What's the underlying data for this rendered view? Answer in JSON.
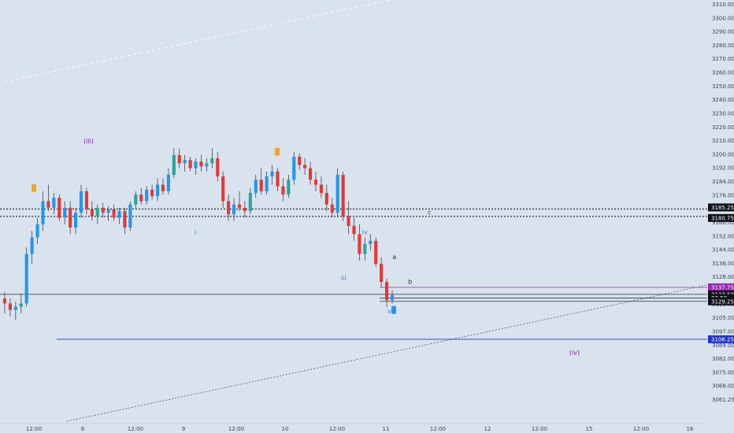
{
  "colors": {
    "background": "#d9e3ee",
    "up": "#2196f3",
    "down": "#e53935",
    "up_alt": "#26a69a",
    "wick": "#2b2f3a",
    "purple_level": "#9c27b0",
    "blue_level": "#2233cc",
    "wave_purple": "#7b1fa2",
    "wave_blue": "#1e88e5",
    "marker_orange": "#f5a623",
    "marker_blue": "#2196f3"
  },
  "chart_data": {
    "type": "candlestick",
    "ylim": [
      3058,
      3312
    ],
    "y_ticks": [
      "3310.00",
      "3300.00",
      "3290.00",
      "3280.00",
      "3270.00",
      "3260.00",
      "3250.00",
      "3240.00",
      "3230.00",
      "3220.00",
      "3210.00",
      "3200.00",
      "3192.00",
      "3184.00",
      "3176.00",
      "3168.00",
      "3160.00",
      "3152.00",
      "3144.00",
      "3136.00",
      "3128.00",
      "3121.00",
      "3113.00",
      "3105.00",
      "3097.00",
      "3089.00",
      "3082.00",
      "3075.00",
      "3068.00",
      "3061.25"
    ],
    "x_ticks": [
      "12:00",
      "8",
      "12:00",
      "9",
      "12:00",
      "10",
      "12:00",
      "11",
      "12:00",
      "12",
      "12:00",
      "15",
      "12:00",
      "16"
    ],
    "candles": [
      {
        "o": 3131,
        "h": 3135,
        "l": 3122,
        "c": 3128
      },
      {
        "o": 3128,
        "h": 3131,
        "l": 3120,
        "c": 3124
      },
      {
        "o": 3124,
        "h": 3129,
        "l": 3118,
        "c": 3126
      },
      {
        "o": 3126,
        "h": 3134,
        "l": 3122,
        "c": 3128
      },
      {
        "o": 3128,
        "h": 3162,
        "l": 3126,
        "c": 3158
      },
      {
        "o": 3158,
        "h": 3172,
        "l": 3152,
        "c": 3168
      },
      {
        "o": 3168,
        "h": 3180,
        "l": 3164,
        "c": 3176
      },
      {
        "o": 3176,
        "h": 3196,
        "l": 3172,
        "c": 3190
      },
      {
        "o": 3190,
        "h": 3200,
        "l": 3184,
        "c": 3186
      },
      {
        "o": 3186,
        "h": 3195,
        "l": 3182,
        "c": 3192
      },
      {
        "o": 3192,
        "h": 3194,
        "l": 3178,
        "c": 3180
      },
      {
        "o": 3180,
        "h": 3190,
        "l": 3176,
        "c": 3186
      },
      {
        "o": 3186,
        "h": 3190,
        "l": 3170,
        "c": 3174
      },
      {
        "o": 3174,
        "h": 3186,
        "l": 3170,
        "c": 3183
      },
      {
        "o": 3183,
        "h": 3200,
        "l": 3180,
        "c": 3196
      },
      {
        "o": 3196,
        "h": 3198,
        "l": 3182,
        "c": 3185
      },
      {
        "o": 3185,
        "h": 3190,
        "l": 3178,
        "c": 3181
      },
      {
        "o": 3181,
        "h": 3188,
        "l": 3176,
        "c": 3186
      },
      {
        "o": 3186,
        "h": 3189,
        "l": 3180,
        "c": 3183
      },
      {
        "o": 3183,
        "h": 3187,
        "l": 3178,
        "c": 3185
      },
      {
        "o": 3185,
        "h": 3188,
        "l": 3178,
        "c": 3180
      },
      {
        "o": 3180,
        "h": 3186,
        "l": 3176,
        "c": 3184
      },
      {
        "o": 3184,
        "h": 3186,
        "l": 3170,
        "c": 3174
      },
      {
        "o": 3174,
        "h": 3190,
        "l": 3172,
        "c": 3188
      },
      {
        "o": 3188,
        "h": 3196,
        "l": 3185,
        "c": 3194
      },
      {
        "o": 3194,
        "h": 3198,
        "l": 3188,
        "c": 3190
      },
      {
        "o": 3190,
        "h": 3199,
        "l": 3188,
        "c": 3197
      },
      {
        "o": 3197,
        "h": 3200,
        "l": 3191,
        "c": 3193
      },
      {
        "o": 3193,
        "h": 3204,
        "l": 3190,
        "c": 3200
      },
      {
        "o": 3200,
        "h": 3204,
        "l": 3194,
        "c": 3196
      },
      {
        "o": 3196,
        "h": 3210,
        "l": 3194,
        "c": 3206
      },
      {
        "o": 3206,
        "h": 3222,
        "l": 3204,
        "c": 3218
      },
      {
        "o": 3218,
        "h": 3222,
        "l": 3210,
        "c": 3213
      },
      {
        "o": 3213,
        "h": 3218,
        "l": 3208,
        "c": 3215
      },
      {
        "o": 3215,
        "h": 3217,
        "l": 3208,
        "c": 3210
      },
      {
        "o": 3210,
        "h": 3216,
        "l": 3206,
        "c": 3214
      },
      {
        "o": 3214,
        "h": 3218,
        "l": 3208,
        "c": 3211
      },
      {
        "o": 3211,
        "h": 3216,
        "l": 3208,
        "c": 3213
      },
      {
        "o": 3213,
        "h": 3222,
        "l": 3210,
        "c": 3216
      },
      {
        "o": 3216,
        "h": 3220,
        "l": 3202,
        "c": 3205
      },
      {
        "o": 3205,
        "h": 3208,
        "l": 3186,
        "c": 3190
      },
      {
        "o": 3190,
        "h": 3194,
        "l": 3178,
        "c": 3182
      },
      {
        "o": 3182,
        "h": 3192,
        "l": 3178,
        "c": 3188
      },
      {
        "o": 3188,
        "h": 3196,
        "l": 3184,
        "c": 3186
      },
      {
        "o": 3186,
        "h": 3190,
        "l": 3180,
        "c": 3184
      },
      {
        "o": 3184,
        "h": 3198,
        "l": 3182,
        "c": 3195
      },
      {
        "o": 3195,
        "h": 3206,
        "l": 3192,
        "c": 3203
      },
      {
        "o": 3203,
        "h": 3210,
        "l": 3194,
        "c": 3196
      },
      {
        "o": 3196,
        "h": 3208,
        "l": 3194,
        "c": 3205
      },
      {
        "o": 3205,
        "h": 3212,
        "l": 3200,
        "c": 3208
      },
      {
        "o": 3208,
        "h": 3210,
        "l": 3196,
        "c": 3199
      },
      {
        "o": 3199,
        "h": 3204,
        "l": 3190,
        "c": 3194
      },
      {
        "o": 3194,
        "h": 3206,
        "l": 3192,
        "c": 3203
      },
      {
        "o": 3203,
        "h": 3220,
        "l": 3200,
        "c": 3217
      },
      {
        "o": 3217,
        "h": 3219,
        "l": 3209,
        "c": 3212
      },
      {
        "o": 3212,
        "h": 3216,
        "l": 3206,
        "c": 3210
      },
      {
        "o": 3210,
        "h": 3214,
        "l": 3200,
        "c": 3203
      },
      {
        "o": 3203,
        "h": 3208,
        "l": 3196,
        "c": 3200
      },
      {
        "o": 3200,
        "h": 3205,
        "l": 3192,
        "c": 3195
      },
      {
        "o": 3195,
        "h": 3200,
        "l": 3184,
        "c": 3188
      },
      {
        "o": 3188,
        "h": 3192,
        "l": 3180,
        "c": 3183
      },
      {
        "o": 3183,
        "h": 3210,
        "l": 3181,
        "c": 3206
      },
      {
        "o": 3206,
        "h": 3208,
        "l": 3178,
        "c": 3181
      },
      {
        "o": 3181,
        "h": 3190,
        "l": 3170,
        "c": 3175
      },
      {
        "o": 3175,
        "h": 3180,
        "l": 3166,
        "c": 3170
      },
      {
        "o": 3170,
        "h": 3176,
        "l": 3154,
        "c": 3158
      },
      {
        "o": 3158,
        "h": 3168,
        "l": 3154,
        "c": 3164
      },
      {
        "o": 3164,
        "h": 3170,
        "l": 3160,
        "c": 3166
      },
      {
        "o": 3166,
        "h": 3168,
        "l": 3150,
        "c": 3152
      },
      {
        "o": 3152,
        "h": 3156,
        "l": 3138,
        "c": 3141
      },
      {
        "o": 3141,
        "h": 3143,
        "l": 3126,
        "c": 3130
      },
      {
        "o": 3130,
        "h": 3136,
        "l": 3128,
        "c": 3133
      }
    ],
    "levels": [
      {
        "label": "3185.25",
        "value": 3185.25,
        "style": "dotted",
        "color_key": "wick"
      },
      {
        "label": "3180.75",
        "value": 3180.75,
        "style": "dotted",
        "color_key": "wick"
      },
      {
        "label": "3137.75",
        "value": 3137.75,
        "style": "solid",
        "color_key": "purple_level"
      },
      {
        "label": "3133.50",
        "value": 3133.5,
        "style": "solid",
        "color_key": "wick"
      },
      {
        "label": "23:58",
        "value": 3131.2,
        "style": "solid",
        "color_key": "wick"
      },
      {
        "label": "3129.25",
        "value": 3129.25,
        "style": "solid",
        "color_key": "wick"
      },
      {
        "label": "3106.25",
        "value": 3106.25,
        "style": "solid",
        "color_key": "blue_level"
      }
    ],
    "wave_labels": [
      {
        "text": "(iii)",
        "x_frac": 0.118,
        "value": 3225,
        "color_key": "wave_purple"
      },
      {
        "text": "i",
        "x_frac": 0.275,
        "value": 3170,
        "color_key": "wave_blue"
      },
      {
        "text": "iii",
        "x_frac": 0.482,
        "value": 3142,
        "color_key": "wave_blue"
      },
      {
        "text": "iv",
        "x_frac": 0.512,
        "value": 3170,
        "color_key": "wave_blue"
      },
      {
        "text": "v",
        "x_frac": 0.548,
        "value": 3122,
        "color_key": "wave_blue"
      },
      {
        "text": "a",
        "x_frac": 0.555,
        "value": 3155,
        "color_key": "wick"
      },
      {
        "text": "b",
        "x_frac": 0.577,
        "value": 3140,
        "color_key": "wick"
      },
      {
        "text": "c",
        "x_frac": 0.605,
        "value": 3182,
        "color_key": "wick"
      },
      {
        "text": "(iv)",
        "x_frac": 0.805,
        "value": 3097,
        "color_key": "wave_purple"
      }
    ]
  }
}
